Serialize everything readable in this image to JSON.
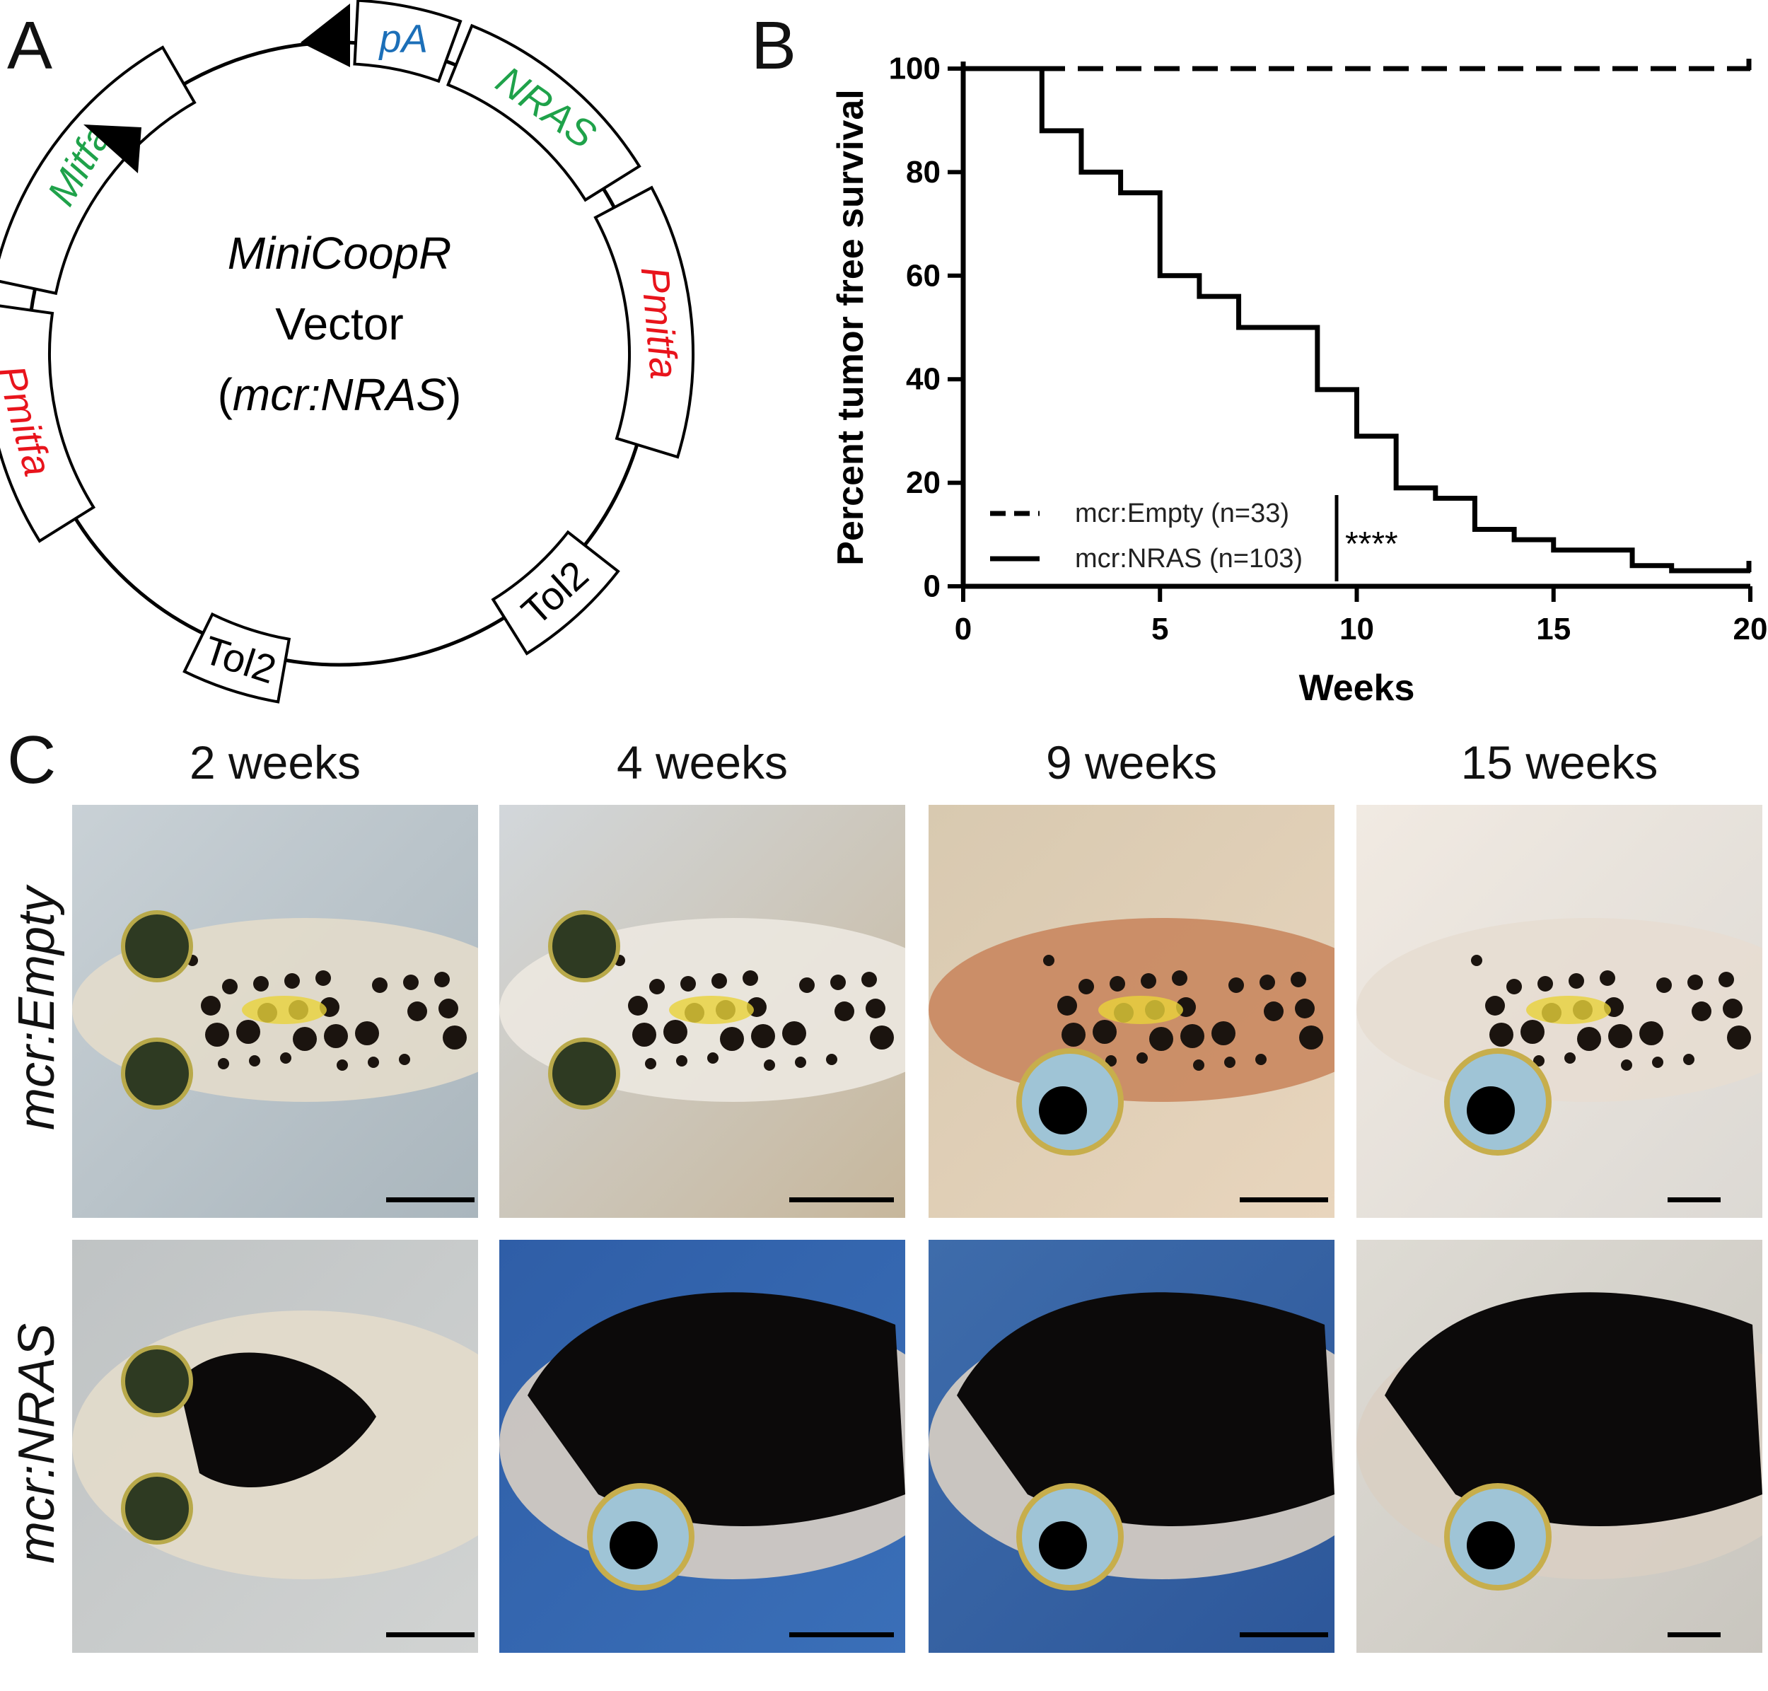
{
  "panel_letters": {
    "a": "A",
    "b": "B",
    "c": "C"
  },
  "vector": {
    "name": "MiniCoopR",
    "line2": "Vector",
    "line3_open": "(",
    "line3_italic": "mcr:NRAS",
    "line3_close": ")",
    "segments": {
      "pA": "pA",
      "nras": "NRAS",
      "pmitfa_right": "Pmitfa",
      "tol2_right": "Tol2",
      "tol2_bottom": "Tol2",
      "pmitfa_left": "Pmitfa",
      "mitfa": "Mitfa"
    },
    "colors": {
      "green": "#1fa24a",
      "red": "#e8141c",
      "blue": "#1c6fb8"
    }
  },
  "chart_data": {
    "type": "line",
    "title": "",
    "xlabel": "Weeks",
    "ylabel": "Percent tumor free survival",
    "xlim": [
      0,
      20
    ],
    "ylim": [
      0,
      100
    ],
    "xticks": [
      "0",
      "5",
      "10",
      "15",
      "20"
    ],
    "yticks": [
      "0",
      "20",
      "40",
      "60",
      "80",
      "100"
    ],
    "legend_position": "bottom-left",
    "significance": "****",
    "series": [
      {
        "name": "mcr:Empty (n=33)",
        "style": "dashed",
        "x": [
          0,
          20
        ],
        "y": [
          100,
          100
        ]
      },
      {
        "name": "mcr:NRAS (n=103)",
        "style": "solid",
        "x": [
          0,
          2,
          3,
          4,
          5,
          6,
          7,
          9,
          10,
          11,
          12,
          13,
          14,
          15,
          17,
          18,
          20
        ],
        "y": [
          100,
          88,
          80,
          76,
          60,
          56,
          50,
          38,
          29,
          19,
          17,
          11,
          9,
          7,
          4,
          3,
          3
        ]
      }
    ]
  },
  "gallery": {
    "columns": [
      "2 weeks",
      "4 weeks",
      "9 weeks",
      "15 weeks"
    ],
    "rows": [
      "mcr:Empty",
      "mcr:NRAS"
    ]
  }
}
